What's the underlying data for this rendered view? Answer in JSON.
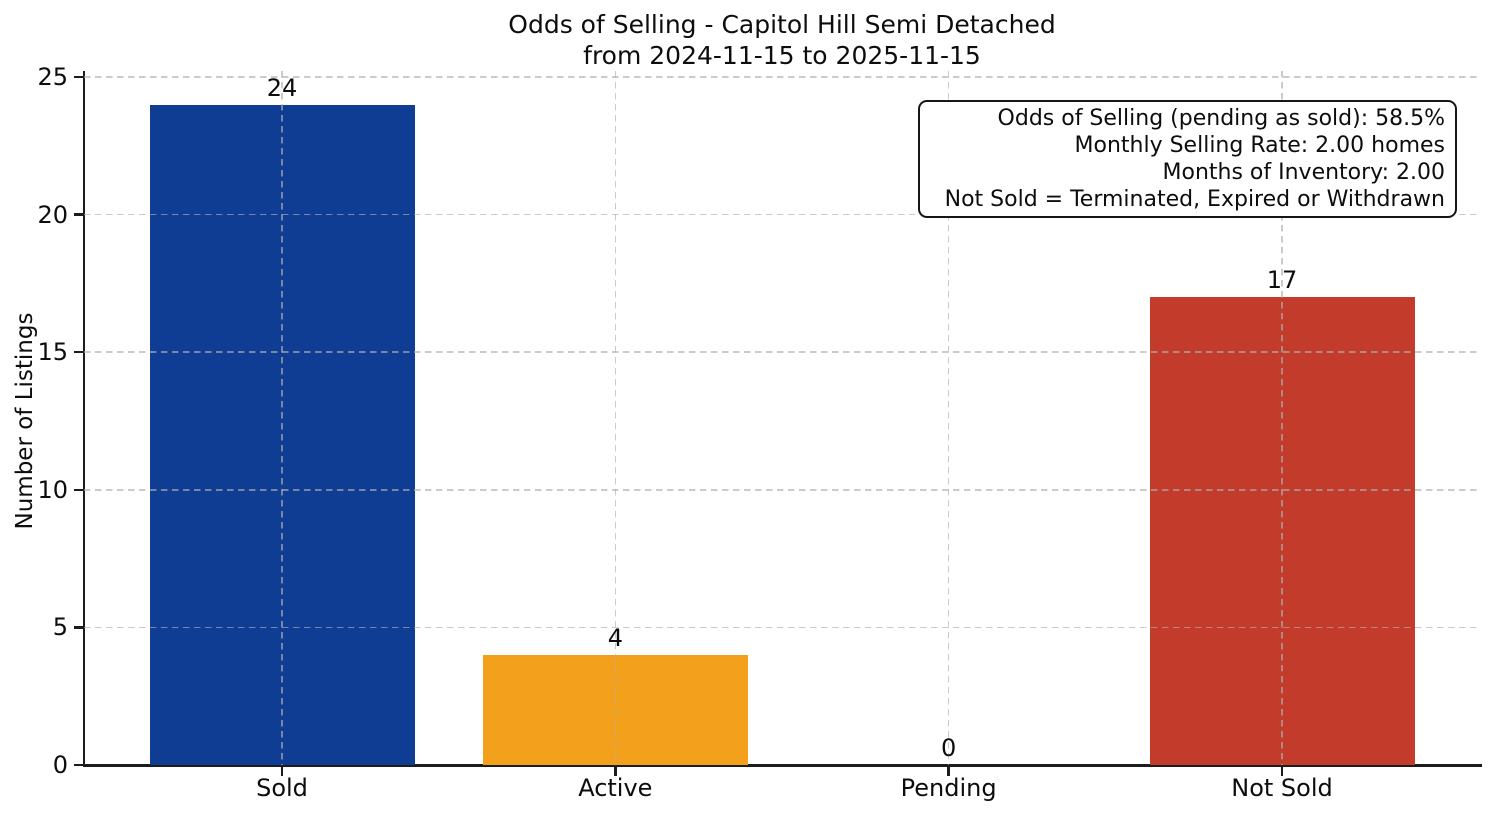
{
  "chart_data": {
    "type": "bar",
    "title": "Odds of Selling - Capitol Hill Semi Detached\nfrom 2024-11-15 to 2025-11-15",
    "title_lines": [
      "Odds of Selling - Capitol Hill Semi Detached",
      "from 2024-11-15 to 2025-11-15"
    ],
    "categories": [
      "Sold",
      "Active",
      "Pending",
      "Not Sold"
    ],
    "values": [
      24,
      4,
      0,
      17
    ],
    "value_labels": [
      "24",
      "4",
      "0",
      "17"
    ],
    "bar_colors": [
      "#0f3d94",
      "#f3a01c",
      null,
      "#c33b2b"
    ],
    "xlabel": "",
    "ylabel": "Number of Listings",
    "ylim": [
      0,
      25.2
    ],
    "yticks": [
      0,
      5,
      10,
      15,
      20,
      25
    ],
    "grid": {
      "style": "dashed",
      "axes": "both",
      "color": "#c8c8c8"
    },
    "legend": null,
    "annotation_box": {
      "position": "top-right",
      "lines": [
        "Odds of Selling (pending as sold): 58.5%",
        "Monthly Selling Rate: 2.00 homes",
        "Months of Inventory: 2.00",
        "Not Sold = Terminated, Expired or Withdrawn"
      ]
    }
  },
  "colors": {
    "sold_bar": "#0f3d94",
    "active_bar": "#f3a01c",
    "not_sold_bar": "#c33b2b",
    "axis": "#1c1c1c",
    "grid": "#c8c8c8",
    "text": "#0d0d0d",
    "background": "#ffffff"
  }
}
